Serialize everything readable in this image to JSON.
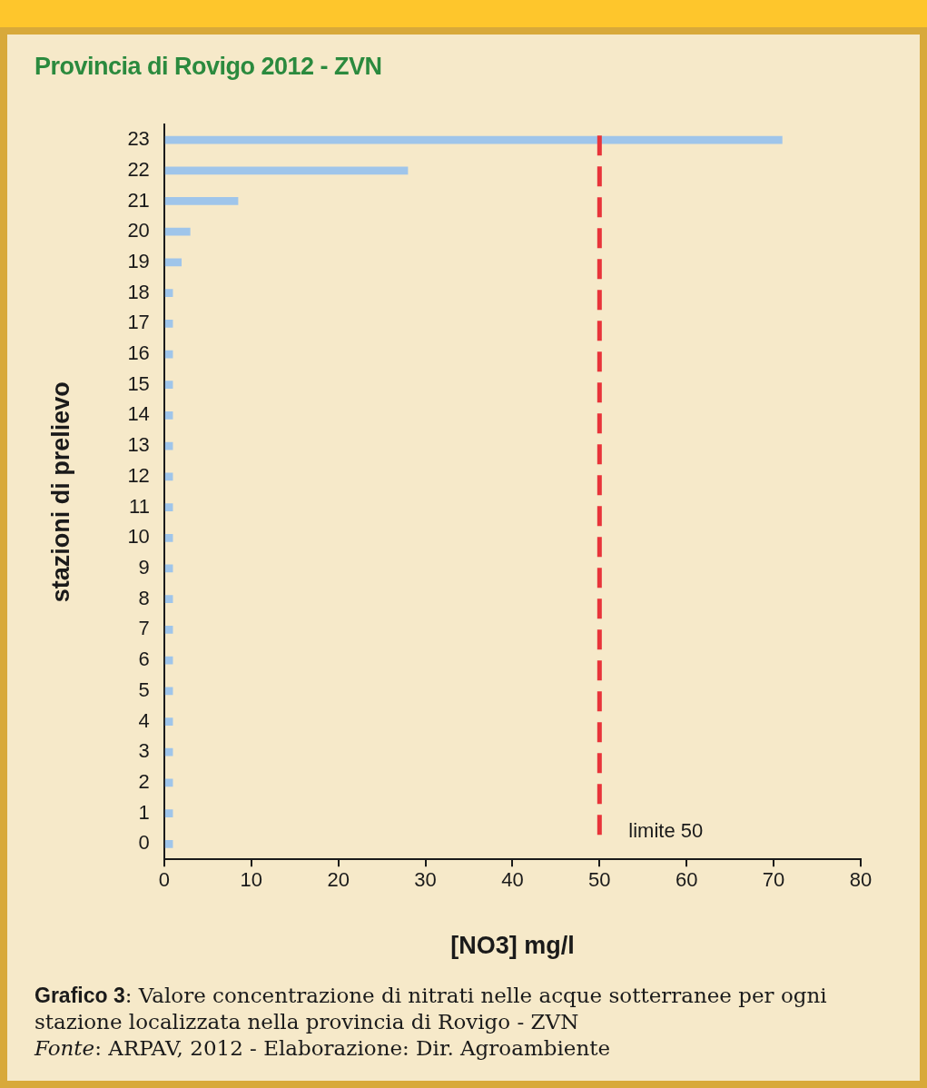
{
  "chart_data": {
    "type": "bar",
    "orientation": "horizontal",
    "title": "Provincia di Rovigo 2012 - ZVN",
    "xlabel": "[NO3] mg/l",
    "ylabel": "stazioni di prelievo",
    "categories": [
      "23",
      "22",
      "21",
      "20",
      "19",
      "18",
      "17",
      "16",
      "15",
      "14",
      "13",
      "12",
      "11",
      "10",
      "9",
      "8",
      "7",
      "6",
      "5",
      "4",
      "3",
      "2",
      "1",
      "0"
    ],
    "values": [
      71,
      28,
      8.5,
      3,
      2,
      1,
      1,
      1,
      1,
      1,
      1,
      1,
      1,
      1,
      1,
      1,
      1,
      1,
      1,
      1,
      1,
      1,
      1,
      1
    ],
    "color": "#9fc5ea",
    "xlim": [
      0,
      80
    ],
    "xticks": [
      0,
      10,
      20,
      30,
      40,
      50,
      60,
      70,
      80
    ],
    "grid": false,
    "legend": false,
    "ref_lines": [
      {
        "axis": "x",
        "value": 50,
        "label": "limite 50",
        "color": "#e8343a",
        "line_style": "dashed"
      }
    ],
    "annotations": [
      "Grafico 3: Valore concentrazione di nitrati nelle acque sotterranee per ogni stazione localizzata nella provincia di Rovigo - ZVN",
      "Fonte: ARPAV, 2012 - Elaborazione: Dir. Agroambiente"
    ]
  }
}
